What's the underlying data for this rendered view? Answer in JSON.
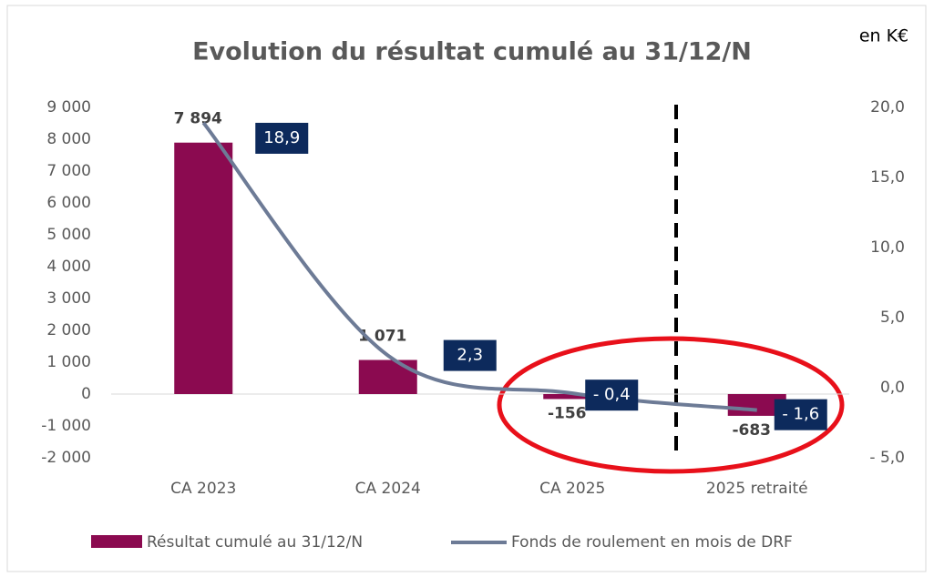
{
  "chart_data": {
    "type": "bar_line",
    "title": "Evolution du résultat cumulé au 31/12/N",
    "annotation": "en K€",
    "categories": [
      "CA 2023",
      "CA 2024",
      "CA 2025",
      "2025 retraité"
    ],
    "series": [
      {
        "name": "Résultat cumulé au 31/12/N",
        "type": "bar",
        "color": "#8b0a50",
        "values": [
          7894,
          1071,
          -156,
          -683
        ],
        "value_labels": [
          "7 894",
          "1 071",
          "-156",
          "-683"
        ]
      },
      {
        "name": "Fonds de roulement en mois de DRF",
        "type": "line",
        "axis": "y2",
        "color": "#6d7b96",
        "values": [
          18.9,
          2.3,
          -0.4,
          -1.6
        ],
        "value_labels": [
          "18,9",
          "2,3",
          "- 0,4",
          "- 1,6"
        ]
      }
    ],
    "ylim": [
      -2000,
      9000
    ],
    "yticks": [
      {
        "value": -2000,
        "label": "-2 000"
      },
      {
        "value": -1000,
        "label": "-1 000"
      },
      0,
      {
        "value": 1000,
        "label": "1 000"
      },
      {
        "value": 2000,
        "label": "2 000"
      },
      {
        "value": 3000,
        "label": "3 000"
      },
      {
        "value": 4000,
        "label": "4 000"
      },
      {
        "value": 5000,
        "label": "5 000"
      },
      {
        "value": 6000,
        "label": "6 000"
      },
      {
        "value": 7000,
        "label": "7 000"
      },
      {
        "value": 8000,
        "label": "8 000"
      },
      {
        "value": 9000,
        "label": "9 000"
      }
    ],
    "y2lim": [
      -5,
      20
    ],
    "y2ticks": [
      {
        "value": -5,
        "label": "- 5,0"
      },
      {
        "value": 0,
        "label": "0,0"
      },
      {
        "value": 5,
        "label": "5,0"
      },
      {
        "value": 10,
        "label": "10,0"
      },
      {
        "value": 15,
        "label": "15,0"
      },
      {
        "value": 20,
        "label": "20,0"
      }
    ],
    "grid": false
  }
}
